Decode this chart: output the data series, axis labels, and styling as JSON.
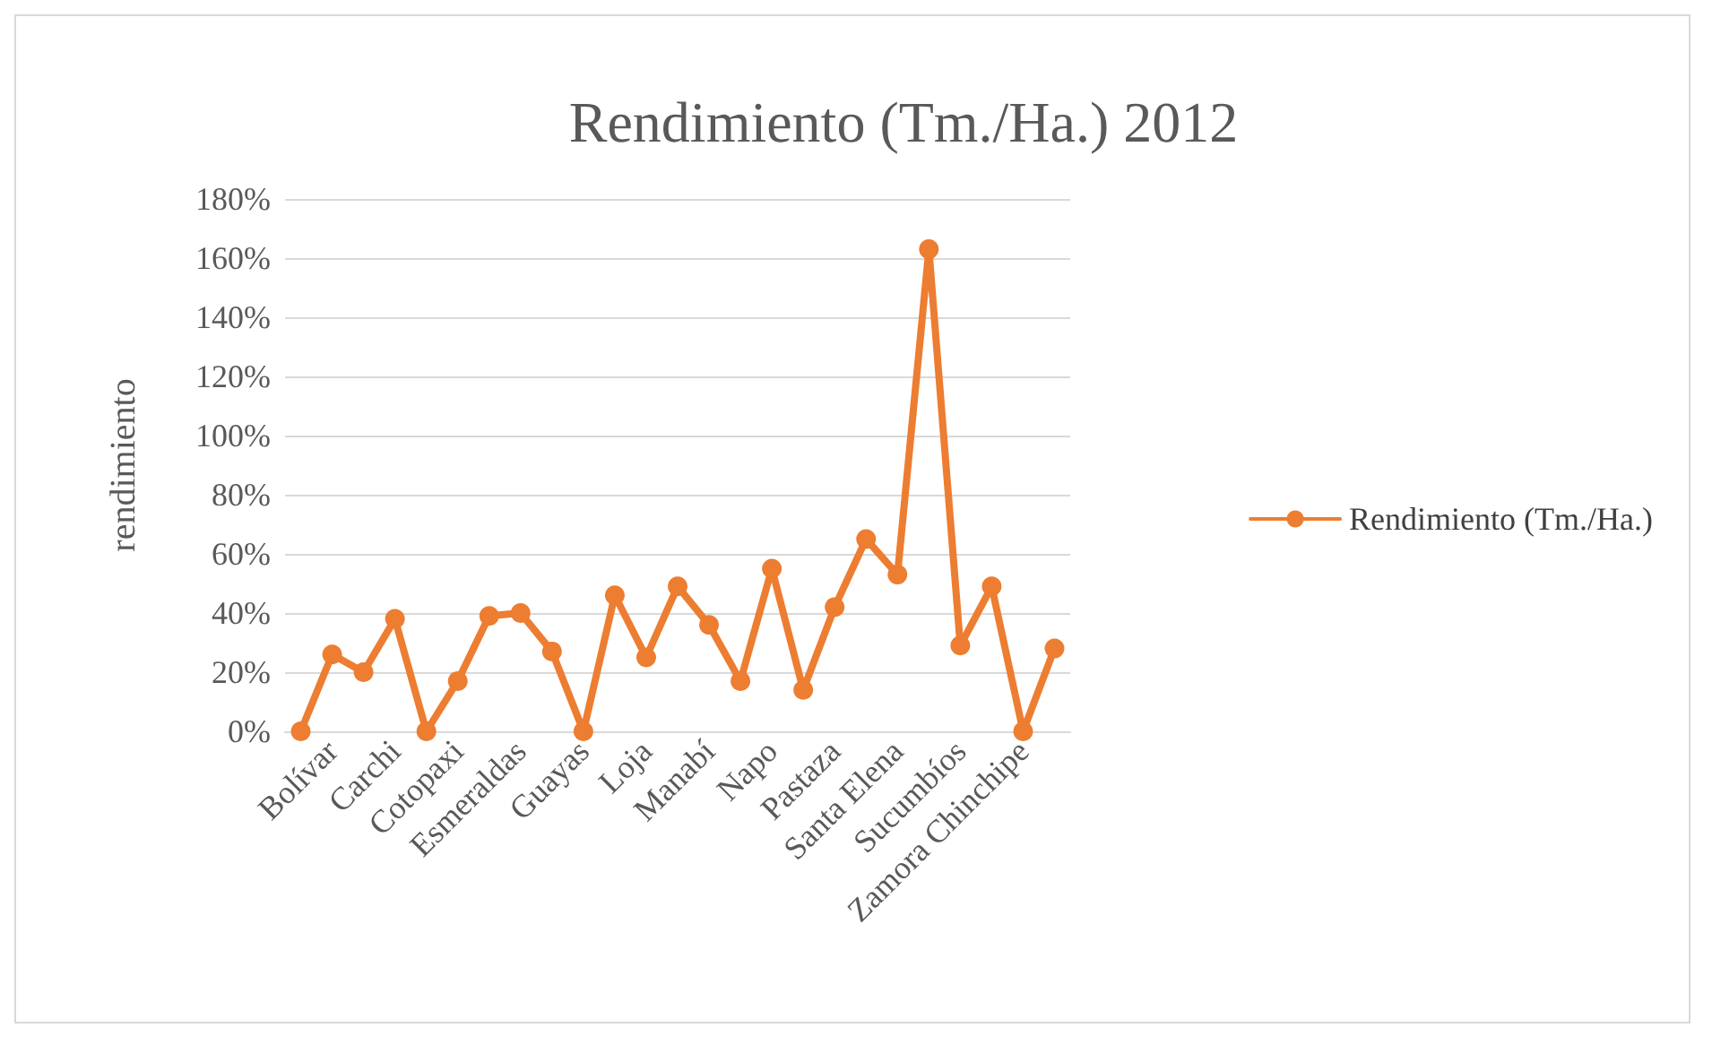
{
  "chart_data": {
    "type": "line",
    "title": "Rendimiento (Tm./Ha.) 2012",
    "ylabel": "rendimiento",
    "categories": [
      null,
      "Bolívar",
      null,
      "Carchi",
      null,
      "Cotopaxi",
      null,
      "Esmeraldas",
      null,
      "Guayas",
      null,
      "Loja",
      null,
      "Manabí",
      null,
      "Napo",
      null,
      "Pastaza",
      null,
      "Santa Elena",
      null,
      "Sucumbíos",
      null,
      "Zamora Chinchipe",
      null
    ],
    "series": [
      {
        "name": "Rendimiento (Tm./Ha.)",
        "color": "#ed7d31",
        "values": [
          0,
          26,
          20,
          38,
          0,
          17,
          39,
          40,
          27,
          0,
          46,
          25,
          49,
          36,
          17,
          55,
          14,
          42,
          65,
          53,
          163,
          29,
          49,
          0,
          28
        ]
      }
    ],
    "ylim": [
      0,
      180
    ],
    "yticks": [
      {
        "value": 0,
        "label": "0%"
      },
      {
        "value": 20,
        "label": "20%"
      },
      {
        "value": 40,
        "label": "40%"
      },
      {
        "value": 60,
        "label": "60%"
      },
      {
        "value": 80,
        "label": "80%"
      },
      {
        "value": 100,
        "label": "100%"
      },
      {
        "value": 120,
        "label": "120%"
      },
      {
        "value": 140,
        "label": "140%"
      },
      {
        "value": 160,
        "label": "160%"
      },
      {
        "value": 180,
        "label": "180%"
      }
    ],
    "grid": "y",
    "legend": "right",
    "marker": "circle",
    "line_style": "solid"
  }
}
